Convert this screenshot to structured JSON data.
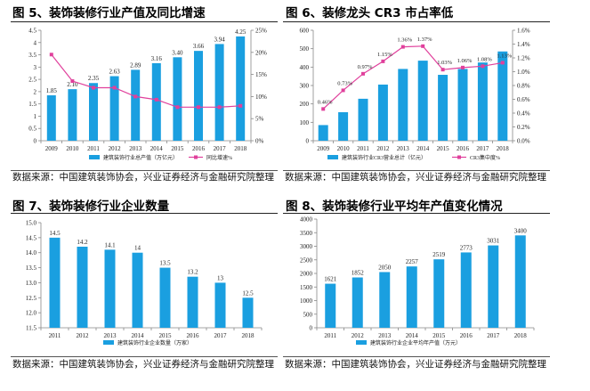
{
  "figures": {
    "fig5": {
      "title": "图 5、装饰装修行业产值及同比增速",
      "source": "数据来源：中国建筑装饰协会，兴业证券经济与金融研究院整理"
    },
    "fig6": {
      "title": "图 6、装修龙头 CR3 市占率低",
      "source": "数据来源：中国建筑装饰协会，兴业证券经济与金融研究院整理"
    },
    "fig7": {
      "title": "图 7、装饰装修行业企业数量",
      "source": "数据来源：中国建筑装饰协会，兴业证券经济与金融研究院整理"
    },
    "fig8": {
      "title": "图 8、装饰装修行业平均年产值变化情况",
      "source": "数据来源：中国建筑装饰协会，兴业证券经济与金融研究院整理"
    }
  },
  "colors": {
    "bar": "#1a9fe0",
    "line": "#e0409c",
    "axis": "#888888"
  },
  "chart_data": [
    {
      "id": "fig5",
      "type": "bar+line",
      "categories": [
        "2009",
        "2010",
        "2011",
        "2012",
        "2013",
        "2014",
        "2015",
        "2016",
        "2017",
        "2018"
      ],
      "series": [
        {
          "name": "建筑装饰行业总产值（万亿元）",
          "type": "bar",
          "axis": "left",
          "values": [
            1.85,
            2.1,
            2.35,
            2.63,
            2.89,
            3.16,
            3.4,
            3.66,
            3.94,
            4.25
          ],
          "labels": [
            "1.85",
            "2.10",
            "2.35",
            "2.63",
            "2.89",
            "3.16",
            "3.40",
            "3.66",
            "3.94",
            "4.25"
          ]
        },
        {
          "name": "同比增速%",
          "type": "line",
          "axis": "right",
          "values": [
            19.5,
            13.5,
            12.0,
            12.0,
            10.0,
            9.3,
            7.6,
            7.6,
            7.6,
            7.9
          ]
        }
      ],
      "y_left": {
        "min": 0,
        "max": 4.5,
        "ticks": [
          "0",
          "0.5",
          "1",
          "1.5",
          "2",
          "2.5",
          "3",
          "3.5",
          "4",
          "4.5"
        ]
      },
      "y_right": {
        "min": 0,
        "max": 25,
        "ticks": [
          "0%",
          "5%",
          "10%",
          "15%",
          "20%",
          "25%"
        ]
      },
      "grid": false,
      "legend": "bottom"
    },
    {
      "id": "fig6",
      "type": "bar+line",
      "categories": [
        "2009",
        "2010",
        "2011",
        "2012",
        "2013",
        "2014",
        "2015",
        "2016",
        "2017",
        "2018"
      ],
      "series": [
        {
          "name": "建筑装饰行业CR3营业总计（亿元）",
          "type": "bar",
          "axis": "left",
          "values": [
            85,
            155,
            228,
            305,
            390,
            435,
            358,
            390,
            425,
            485
          ]
        },
        {
          "name": "CR3集中度%",
          "type": "line",
          "axis": "right",
          "values": [
            0.46,
            0.73,
            0.97,
            1.15,
            1.36,
            1.37,
            1.03,
            1.06,
            1.08,
            1.13
          ],
          "labels": [
            "0.46%",
            "0.73%",
            "0.97%",
            "1.15%",
            "1.36%",
            "1.37%",
            "1.03%",
            "1.06%",
            "1.08%",
            "1.13%"
          ]
        }
      ],
      "y_left": {
        "min": 0,
        "max": 600,
        "ticks": [
          "0",
          "100",
          "200",
          "300",
          "400",
          "500",
          "600"
        ]
      },
      "y_right": {
        "min": 0,
        "max": 1.6,
        "ticks": [
          "0.0%",
          "0.2%",
          "0.4%",
          "0.6%",
          "0.8%",
          "1.0%",
          "1.2%",
          "1.4%",
          "1.6%"
        ]
      },
      "grid": false,
      "legend": "bottom"
    },
    {
      "id": "fig7",
      "type": "bar",
      "categories": [
        "2011",
        "2012",
        "2013",
        "2014",
        "2015",
        "2016",
        "2017",
        "2018"
      ],
      "series": [
        {
          "name": "建筑装饰行业企业数量（万家）",
          "values": [
            14.5,
            14.2,
            14.1,
            14.0,
            13.5,
            13.2,
            13.0,
            12.5
          ],
          "labels": [
            "14.5",
            "14.2",
            "14.1",
            "14",
            "13.5",
            "13.2",
            "13",
            "12.5"
          ]
        }
      ],
      "y_left": {
        "min": 11.5,
        "max": 15.0,
        "ticks": [
          "11.5",
          "12.0",
          "12.5",
          "13.0",
          "13.5",
          "14.0",
          "14.5",
          "15.0"
        ]
      },
      "grid": false,
      "legend": "bottom"
    },
    {
      "id": "fig8",
      "type": "bar",
      "categories": [
        "2011",
        "2012",
        "2013",
        "2014",
        "2015",
        "2016",
        "2017",
        "2018"
      ],
      "series": [
        {
          "name": "建筑装饰行业企业平均年产值（万元）",
          "values": [
            1621,
            1852,
            2050,
            2257,
            2519,
            2773,
            3031,
            3400
          ],
          "labels": [
            "1621",
            "1852",
            "2050",
            "2257",
            "2519",
            "2773",
            "3031",
            "3400"
          ]
        }
      ],
      "y_left": {
        "min": 0,
        "max": 4000,
        "ticks": [
          "0",
          "500",
          "1000",
          "1500",
          "2000",
          "2500",
          "3000",
          "3500",
          "4000"
        ]
      },
      "grid": false,
      "legend": "bottom"
    }
  ]
}
